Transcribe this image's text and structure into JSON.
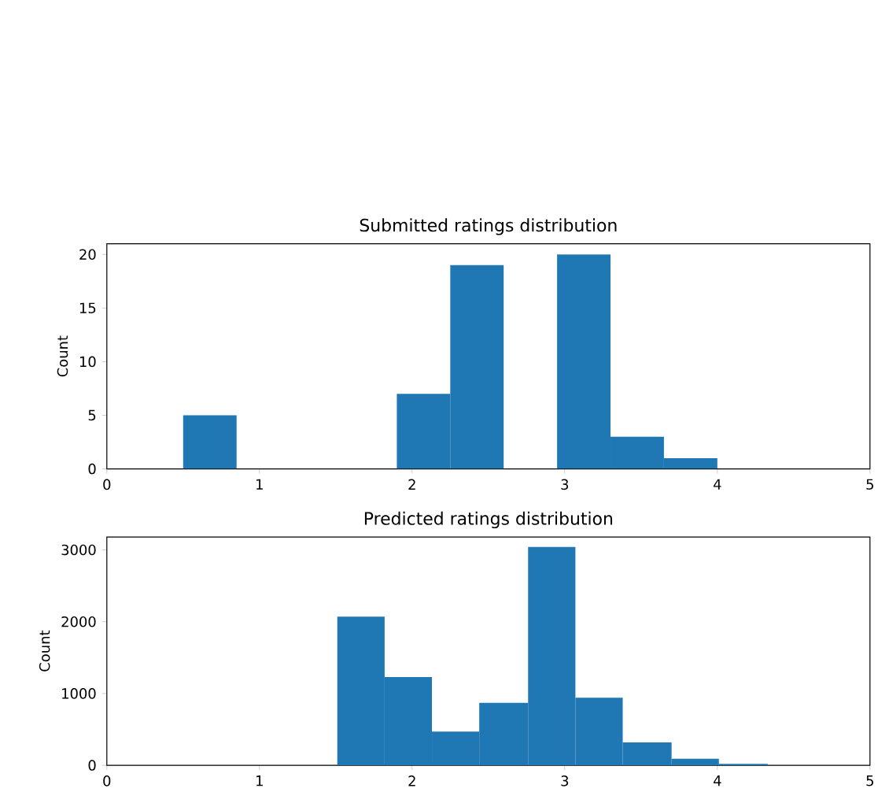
{
  "chart_data": [
    {
      "type": "histogram",
      "title": "Submitted ratings distribution",
      "ylabel": "Count",
      "color": "#1f77b4",
      "bins": [
        0.5,
        0.85,
        1.2,
        1.55,
        1.9,
        2.25,
        2.6,
        2.95,
        3.3,
        3.65,
        4.0
      ],
      "values": [
        5,
        0,
        0,
        0,
        7,
        19,
        0,
        20,
        3,
        1
      ],
      "xlim": [
        0,
        5
      ],
      "xticks": [
        0,
        1,
        2,
        3,
        4,
        5
      ],
      "ylim": [
        0,
        21
      ],
      "yticks": [
        0,
        5,
        10,
        15,
        20
      ]
    },
    {
      "type": "histogram",
      "title": "Predicted ratings distribution",
      "ylabel": "Count",
      "color": "#1f77b4",
      "bins": [
        1.51,
        1.82,
        2.13,
        2.44,
        2.76,
        3.07,
        3.38,
        3.7,
        4.01,
        4.33
      ],
      "values": [
        2070,
        1230,
        470,
        870,
        3040,
        940,
        320,
        90,
        20
      ],
      "xlim": [
        0,
        5
      ],
      "xticks": [
        0,
        1,
        2,
        3,
        4,
        5
      ],
      "ylim": [
        0,
        3180
      ],
      "yticks": [
        0,
        1000,
        2000,
        3000
      ]
    }
  ]
}
